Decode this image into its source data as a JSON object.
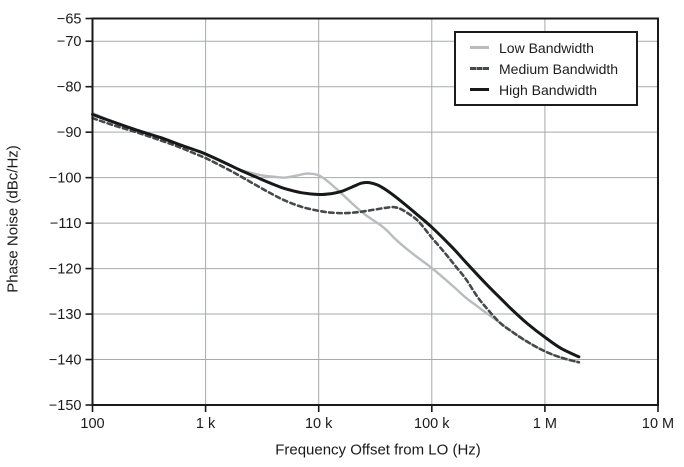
{
  "chart_data": {
    "type": "line",
    "title": "",
    "xlabel": "Frequency Offset from LO (Hz)",
    "ylabel": "Phase Noise (dBc/Hz)",
    "x_scale": "log",
    "x_range": [
      100,
      10000000
    ],
    "y_range": [
      -150,
      -65
    ],
    "grid": true,
    "legend_position": "top-right",
    "axis_color": "#1a1a1a",
    "grid_color": "#a7a9ab",
    "x_ticks": [
      {
        "value": 100,
        "label": "100"
      },
      {
        "value": 1000,
        "label": "1 k"
      },
      {
        "value": 10000,
        "label": "10 k"
      },
      {
        "value": 100000,
        "label": "100 k"
      },
      {
        "value": 1000000,
        "label": "1 M"
      },
      {
        "value": 10000000,
        "label": "10 M"
      }
    ],
    "y_ticks": [
      {
        "value": -65,
        "label": "−65"
      },
      {
        "value": -70,
        "label": "−70"
      },
      {
        "value": -80,
        "label": "−80"
      },
      {
        "value": -90,
        "label": "−90"
      },
      {
        "value": -100,
        "label": "−100"
      },
      {
        "value": -110,
        "label": "−110"
      },
      {
        "value": -120,
        "label": "−120"
      },
      {
        "value": -130,
        "label": "−130"
      },
      {
        "value": -140,
        "label": "−140"
      },
      {
        "value": -150,
        "label": "−150"
      }
    ],
    "series": [
      {
        "name": "Low Bandwidth",
        "color": "#b9bcbe",
        "style": "solid",
        "width": 2.4,
        "points": [
          [
            100,
            -85.8
          ],
          [
            150,
            -87.6
          ],
          [
            250,
            -89.5
          ],
          [
            400,
            -91.2
          ],
          [
            600,
            -92.8
          ],
          [
            800,
            -93.9
          ],
          [
            1000,
            -94.9
          ],
          [
            1500,
            -96.9
          ],
          [
            2000,
            -98.2
          ],
          [
            3000,
            -99.4
          ],
          [
            4000,
            -99.8
          ],
          [
            5000,
            -100.0
          ],
          [
            6500,
            -99.5
          ],
          [
            8000,
            -99.1
          ],
          [
            10000,
            -99.5
          ],
          [
            12000,
            -100.8
          ],
          [
            15000,
            -102.9
          ],
          [
            20000,
            -105.8
          ],
          [
            25000,
            -107.9
          ],
          [
            30000,
            -109.3
          ],
          [
            35000,
            -110.4
          ],
          [
            40000,
            -111.6
          ],
          [
            50000,
            -114.0
          ],
          [
            70000,
            -117.0
          ],
          [
            100000,
            -119.9
          ],
          [
            150000,
            -123.6
          ],
          [
            200000,
            -126.4
          ],
          [
            250000,
            -128.2
          ],
          [
            300000,
            -129.7
          ],
          [
            400000,
            -131.9
          ],
          [
            500000,
            -133.7
          ],
          [
            700000,
            -136.1
          ],
          [
            1000000,
            -138.2
          ],
          [
            1400000,
            -139.6
          ],
          [
            2000000,
            -140.6
          ]
        ]
      },
      {
        "name": "Medium Bandwidth",
        "color": "#45494c",
        "style": "dashed",
        "width": 2.6,
        "points": [
          [
            100,
            -86.9
          ],
          [
            150,
            -88.4
          ],
          [
            250,
            -90.1
          ],
          [
            400,
            -91.8
          ],
          [
            600,
            -93.4
          ],
          [
            800,
            -94.7
          ],
          [
            1000,
            -95.7
          ],
          [
            1500,
            -97.9
          ],
          [
            2000,
            -99.6
          ],
          [
            3000,
            -102.1
          ],
          [
            4000,
            -103.8
          ],
          [
            5000,
            -105.0
          ],
          [
            7000,
            -106.4
          ],
          [
            10000,
            -107.3
          ],
          [
            13000,
            -107.7
          ],
          [
            17000,
            -107.8
          ],
          [
            22000,
            -107.6
          ],
          [
            30000,
            -107.1
          ],
          [
            40000,
            -106.6
          ],
          [
            47000,
            -106.5
          ],
          [
            55000,
            -107.1
          ],
          [
            70000,
            -108.8
          ],
          [
            80000,
            -110.2
          ],
          [
            100000,
            -113.2
          ],
          [
            130000,
            -116.5
          ],
          [
            160000,
            -119.3
          ],
          [
            200000,
            -122.3
          ],
          [
            250000,
            -126.0
          ],
          [
            300000,
            -128.5
          ],
          [
            400000,
            -131.9
          ],
          [
            500000,
            -133.7
          ],
          [
            700000,
            -136.1
          ],
          [
            1000000,
            -138.2
          ],
          [
            1400000,
            -139.6
          ],
          [
            2000000,
            -140.6
          ]
        ]
      },
      {
        "name": "High Bandwidth",
        "color": "#161819",
        "style": "solid",
        "width": 3,
        "points": [
          [
            100,
            -86.1
          ],
          [
            150,
            -87.7
          ],
          [
            250,
            -89.6
          ],
          [
            400,
            -91.2
          ],
          [
            600,
            -92.8
          ],
          [
            800,
            -93.9
          ],
          [
            1000,
            -94.8
          ],
          [
            1500,
            -96.8
          ],
          [
            2000,
            -98.3
          ],
          [
            3000,
            -100.2
          ],
          [
            4000,
            -101.5
          ],
          [
            5000,
            -102.4
          ],
          [
            7000,
            -103.3
          ],
          [
            10000,
            -103.7
          ],
          [
            13000,
            -103.5
          ],
          [
            16000,
            -103.0
          ],
          [
            20000,
            -102.0
          ],
          [
            24000,
            -101.2
          ],
          [
            28000,
            -101.1
          ],
          [
            33000,
            -101.6
          ],
          [
            40000,
            -102.8
          ],
          [
            50000,
            -104.6
          ],
          [
            70000,
            -107.6
          ],
          [
            100000,
            -110.9
          ],
          [
            150000,
            -115.2
          ],
          [
            200000,
            -118.6
          ],
          [
            300000,
            -123.3
          ],
          [
            400000,
            -126.4
          ],
          [
            500000,
            -128.8
          ],
          [
            700000,
            -132.1
          ],
          [
            1000000,
            -135.1
          ],
          [
            1400000,
            -137.6
          ],
          [
            2000000,
            -139.4
          ]
        ]
      }
    ]
  }
}
